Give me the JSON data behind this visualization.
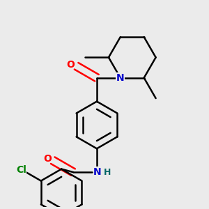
{
  "background_color": "#ebebeb",
  "line_color": "#000000",
  "bond_width": 1.8,
  "font_size": 10,
  "atom_colors": {
    "O": "#ff0000",
    "N": "#0000cc",
    "Cl": "#008000",
    "H": "#006666"
  },
  "fig_size": [
    3.0,
    3.0
  ],
  "dpi": 100
}
